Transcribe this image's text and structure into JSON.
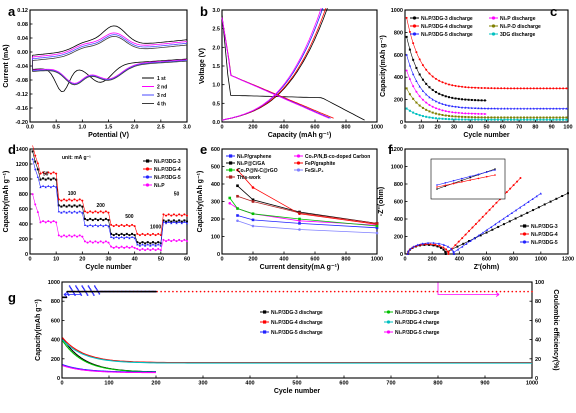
{
  "chart_data": [
    {
      "id": "a",
      "type": "line",
      "panel_letter": "a",
      "xlabel": "Potential (V)",
      "ylabel": "Current (mA)",
      "xlim": [
        0.0,
        3.0
      ],
      "ylim": [
        -0.2,
        0.12
      ],
      "xticks": [
        "0.0",
        "0.5",
        "1.0",
        "1.5",
        "2.0",
        "2.5",
        "3.0"
      ],
      "yticks": [
        "-0.20",
        "-0.16",
        "-0.12",
        "-0.08",
        "-0.04",
        "0.00",
        "0.04",
        "0.08",
        "0.12"
      ],
      "legend_position": "bottom-right",
      "series": [
        {
          "name": "1 st",
          "color": "#000000"
        },
        {
          "name": "2 nd",
          "color": "#ff00ff"
        },
        {
          "name": "3 rd",
          "color": "#4b4bff"
        },
        {
          "name": "4 th",
          "color": "#3c3c3c"
        }
      ]
    },
    {
      "id": "b",
      "type": "line",
      "panel_letter": "b",
      "xlabel": "Capacity (mAh g⁻¹)",
      "ylabel": "Voltage (V)",
      "xlim": [
        0,
        1000
      ],
      "ylim": [
        0.0,
        3.0
      ],
      "xticks": [
        "0",
        "200",
        "400",
        "600",
        "800",
        "1000"
      ],
      "yticks": [
        "0.0",
        "0.5",
        "1.0",
        "1.5",
        "2.0",
        "2.5",
        "3.0"
      ],
      "series": [
        {
          "name": "",
          "color": "#000000"
        },
        {
          "name": "",
          "color": "#ff0000"
        },
        {
          "name": "",
          "color": "#2222ff"
        },
        {
          "name": "",
          "color": "#ff00ff"
        }
      ]
    },
    {
      "id": "c",
      "type": "scatter",
      "panel_letter": "c",
      "xlabel": "Cycle number",
      "ylabel": "Capacity(mAh g⁻¹)",
      "xlim": [
        0,
        100
      ],
      "ylim": [
        0,
        1000
      ],
      "xticks": [
        "0",
        "10",
        "20",
        "30",
        "40",
        "50",
        "60",
        "70",
        "80",
        "90",
        "100"
      ],
      "yticks": [
        "0",
        "200",
        "400",
        "600",
        "800",
        "1000"
      ],
      "legend_position": "top",
      "series": [
        {
          "name": "Ni₂P/3DG-3 discharge",
          "color": "#000000"
        },
        {
          "name": "Ni₂P discharge",
          "color": "#ff00ff"
        },
        {
          "name": "Ni₂P/3DG-4 discharge",
          "color": "#ff0000"
        },
        {
          "name": "Ni₂P-D discharge",
          "color": "#808000"
        },
        {
          "name": "Ni₂P/3DG-5 discharge",
          "color": "#2222ff"
        },
        {
          "name": "3DG discharge",
          "color": "#00c0c0"
        }
      ]
    },
    {
      "id": "d",
      "type": "scatter",
      "panel_letter": "d",
      "xlabel": "Cycle number",
      "ylabel": "Capacity(mAh g⁻¹)",
      "xlim": [
        0,
        60
      ],
      "ylim": [
        0,
        1400
      ],
      "xticks": [
        "0",
        "10",
        "20",
        "30",
        "40",
        "50",
        "60"
      ],
      "yticks": [
        "0",
        "200",
        "400",
        "600",
        "800",
        "1000",
        "1200",
        "1400"
      ],
      "unit_note": "unit: mA g⁻¹",
      "rate_labels": [
        "50",
        "100",
        "200",
        "500",
        "1000",
        "50"
      ],
      "legend_position": "right",
      "series": [
        {
          "name": "Ni₂P/3DG-3",
          "color": "#000000"
        },
        {
          "name": "Ni₂P/3DG-4",
          "color": "#ff0000"
        },
        {
          "name": "Ni₂P/3DG-5",
          "color": "#2222ff"
        },
        {
          "name": "Ni₂P",
          "color": "#ff00ff"
        }
      ]
    },
    {
      "id": "e",
      "type": "line",
      "panel_letter": "e",
      "xlabel": "Current density(mA g⁻¹)",
      "ylabel": "Capacity(mAh g⁻¹)",
      "xlim": [
        0,
        1000
      ],
      "ylim": [
        0,
        600
      ],
      "xticks": [
        "0",
        "200",
        "400",
        "600",
        "800",
        "1000"
      ],
      "yticks": [
        "0",
        "100",
        "200",
        "300",
        "400",
        "500",
        "600"
      ],
      "legend_position": "top",
      "series": [
        {
          "name": "Ni₂P/graphene",
          "color": "#2222ff",
          "values": [
            [
              100,
              220
            ],
            [
              200,
              195
            ],
            [
              500,
              175
            ],
            [
              1000,
              150
            ]
          ]
        },
        {
          "name": "Co₂P/N,B-co-doped Carbon",
          "color": "#ff00ff",
          "values": [
            [
              50,
              290
            ],
            [
              100,
              260
            ],
            [
              200,
              230
            ],
            [
              500,
              190
            ],
            [
              1000,
              165
            ]
          ]
        },
        {
          "name": "Ni₂P@C/GA",
          "color": "#000000",
          "values": [
            [
              100,
              390
            ],
            [
              200,
              310
            ],
            [
              500,
              240
            ],
            [
              1000,
              175
            ]
          ]
        },
        {
          "name": "FeP/graphite",
          "color": "#ff0000",
          "values": [
            [
              100,
              480
            ],
            [
              200,
              380
            ],
            [
              500,
              230
            ],
            [
              1000,
              170
            ]
          ]
        },
        {
          "name": "Co₂P@N-C@rGO",
          "color": "#00c000",
          "values": [
            [
              50,
              320
            ],
            [
              100,
              260
            ],
            [
              200,
              230
            ],
            [
              500,
              200
            ],
            [
              1000,
              160
            ]
          ]
        },
        {
          "name": "FeSi₄P₄",
          "color": "#8080ff",
          "values": [
            [
              100,
              190
            ],
            [
              200,
              160
            ],
            [
              500,
              140
            ],
            [
              1000,
              120
            ]
          ]
        },
        {
          "name": "This-work",
          "color": "#b02020",
          "values": [
            [
              100,
              330
            ],
            [
              200,
              300
            ],
            [
              500,
              235
            ],
            [
              1000,
              175
            ]
          ]
        }
      ]
    },
    {
      "id": "f",
      "type": "scatter",
      "panel_letter": "f",
      "xlabel": "Z'(ohm)",
      "ylabel": "-Z''(ohm)",
      "xlim": [
        0,
        1200
      ],
      "ylim": [
        0,
        1200
      ],
      "xticks": [
        "0",
        "200",
        "400",
        "600",
        "800",
        "1000",
        "1200"
      ],
      "yticks": [
        "0",
        "200",
        "400",
        "600",
        "800",
        "1000",
        "1200"
      ],
      "legend_position": "bottom-right",
      "series": [
        {
          "name": "Ni₂P/3DG-3",
          "color": "#000000"
        },
        {
          "name": "Ni₂P/3DG-4",
          "color": "#ff0000"
        },
        {
          "name": "Ni₂P/3DG-5",
          "color": "#2222ff"
        }
      ]
    },
    {
      "id": "g",
      "type": "scatter",
      "panel_letter": "g",
      "xlabel": "Cycle number",
      "ylabel": "Capacity(mAh g⁻¹)",
      "y2label": "Coulombic efficiency(%)",
      "xlim": [
        0,
        1000
      ],
      "ylim": [
        0,
        1000
      ],
      "y2lim": [
        0,
        100
      ],
      "xticks": [
        "0",
        "100",
        "200",
        "300",
        "400",
        "500",
        "600",
        "700",
        "800",
        "900",
        "1000"
      ],
      "yticks": [
        "0",
        "200",
        "400",
        "600",
        "800",
        "1000"
      ],
      "y2ticks": [
        "0",
        "20",
        "40",
        "60",
        "80",
        "100"
      ],
      "legend_position": "center",
      "series": [
        {
          "name": "Ni₂P/3DG-3 discharge",
          "color": "#000000"
        },
        {
          "name": "Ni₂P/3DG-3 charge",
          "color": "#00c000"
        },
        {
          "name": "Ni₂P/3DG-4 discharge",
          "color": "#ff0000"
        },
        {
          "name": "Ni₂P/3DG-4 charge",
          "color": "#00c0c0"
        },
        {
          "name": "Ni₂P/3DG-5 discharge",
          "color": "#2222ff"
        },
        {
          "name": "Ni₂P/3DG-5 charge",
          "color": "#ff00ff"
        }
      ]
    }
  ]
}
